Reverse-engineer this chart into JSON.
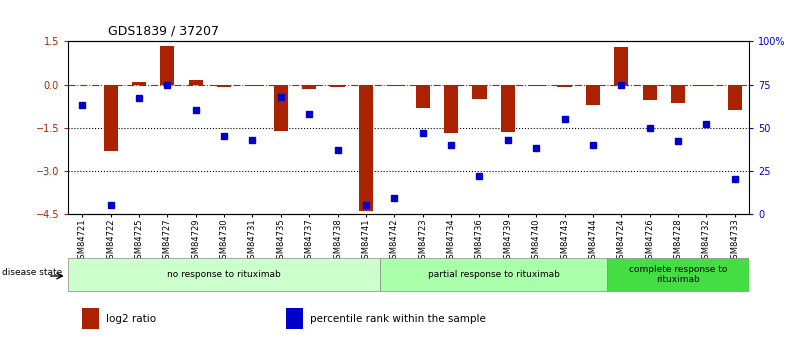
{
  "title": "GDS1839 / 37207",
  "samples": [
    "GSM84721",
    "GSM84722",
    "GSM84725",
    "GSM84727",
    "GSM84729",
    "GSM84730",
    "GSM84731",
    "GSM84735",
    "GSM84737",
    "GSM84738",
    "GSM84741",
    "GSM84742",
    "GSM84723",
    "GSM84734",
    "GSM84736",
    "GSM84739",
    "GSM84740",
    "GSM84743",
    "GSM84744",
    "GSM84724",
    "GSM84726",
    "GSM84728",
    "GSM84732",
    "GSM84733"
  ],
  "log2_ratio": [
    0.0,
    -2.3,
    0.1,
    1.35,
    0.15,
    -0.1,
    -0.05,
    -1.6,
    -0.15,
    -0.08,
    -4.4,
    -0.05,
    -0.8,
    -1.7,
    -0.5,
    -1.65,
    -0.05,
    -0.1,
    -0.7,
    1.3,
    -0.55,
    -0.65,
    -0.05,
    -0.9
  ],
  "percentile": [
    63,
    5,
    67,
    75,
    60,
    45,
    43,
    68,
    58,
    37,
    5,
    9,
    47,
    40,
    22,
    43,
    38,
    55,
    40,
    75,
    50,
    42,
    52,
    20
  ],
  "groups": [
    {
      "label": "no response to rituximab",
      "start": 0,
      "end": 11,
      "color": "#ccffcc"
    },
    {
      "label": "partial response to rituximab",
      "start": 11,
      "end": 19,
      "color": "#aaffaa"
    },
    {
      "label": "complete response to\nrituximab",
      "start": 19,
      "end": 24,
      "color": "#44dd44"
    }
  ],
  "bar_color": "#aa2200",
  "dot_color": "#0000cc",
  "ylim_left": [
    -4.5,
    1.5
  ],
  "background": "#ffffff",
  "legend_items": [
    {
      "label": "log2 ratio",
      "color": "#aa2200"
    },
    {
      "label": "percentile rank within the sample",
      "color": "#0000cc"
    }
  ]
}
